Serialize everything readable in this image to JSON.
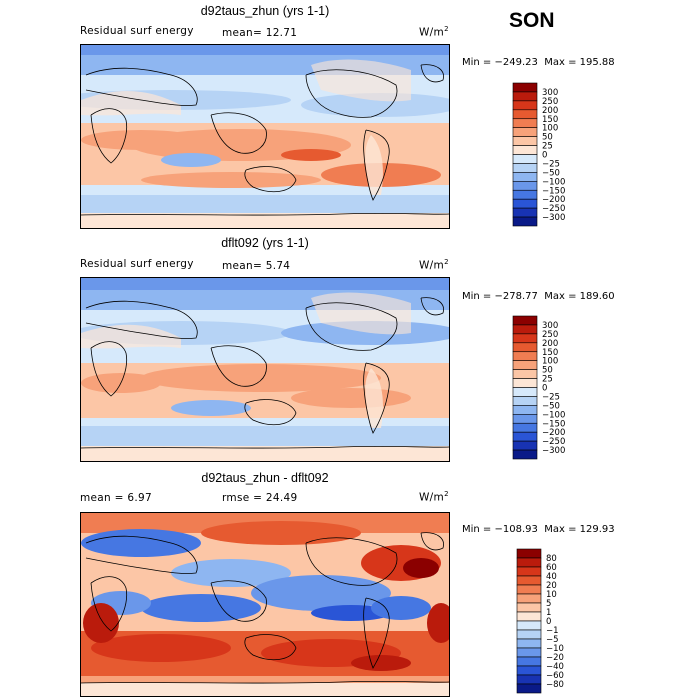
{
  "season": "SON",
  "chart_data": [
    {
      "type": "heatmap",
      "title": "d92taus_zhun (yrs 1-1)",
      "left_label": "Residual surf energy",
      "mid_label": "mean=  12.71",
      "units": "W/m",
      "units_sup": "2",
      "min_label": "Min = −249.23",
      "max_label": "Max = 195.88",
      "mean": 12.71,
      "min": -249.23,
      "max": 195.88,
      "levels": [
        "300",
        "250",
        "200",
        "150",
        "100",
        "50",
        "25",
        "0",
        "−25",
        "−50",
        "−100",
        "−150",
        "−200",
        "−250",
        "−300"
      ],
      "colors": [
        "#8b0000",
        "#ba1b0c",
        "#d7361a",
        "#e65a30",
        "#f07d52",
        "#f7a27a",
        "#fcc6a6",
        "#fde6d6",
        "#d6e9fb",
        "#b6d3f5",
        "#8eb6f1",
        "#6a97ea",
        "#4677e2",
        "#2a55d6",
        "#1833b3",
        "#0a1a88"
      ]
    },
    {
      "type": "heatmap",
      "title": "dflt092 (yrs 1-1)",
      "left_label": "Residual surf energy",
      "mid_label": "mean=  5.74",
      "units": "W/m",
      "units_sup": "2",
      "min_label": "Min = −278.77",
      "max_label": "Max = 189.60",
      "mean": 5.74,
      "min": -278.77,
      "max": 189.6,
      "levels": [
        "300",
        "250",
        "200",
        "150",
        "100",
        "50",
        "25",
        "0",
        "−25",
        "−50",
        "−100",
        "−150",
        "−200",
        "−250",
        "−300"
      ],
      "colors": [
        "#8b0000",
        "#ba1b0c",
        "#d7361a",
        "#e65a30",
        "#f07d52",
        "#f7a27a",
        "#fcc6a6",
        "#fde6d6",
        "#d6e9fb",
        "#b6d3f5",
        "#8eb6f1",
        "#6a97ea",
        "#4677e2",
        "#2a55d6",
        "#1833b3",
        "#0a1a88"
      ]
    },
    {
      "type": "heatmap",
      "title": "d92taus_zhun - dflt092",
      "left_label": "mean =   6.97",
      "mid_label": "rmse =  24.49",
      "units": "W/m",
      "units_sup": "2",
      "min_label": "Min = −108.93",
      "max_label": "Max = 129.93",
      "mean": 6.97,
      "rmse": 24.49,
      "min": -108.93,
      "max": 129.93,
      "levels": [
        "80",
        "60",
        "40",
        "20",
        "10",
        "5",
        "1",
        "0",
        "−1",
        "−5",
        "−10",
        "−20",
        "−40",
        "−60",
        "−80"
      ],
      "colors": [
        "#8b0000",
        "#ba1b0c",
        "#d7361a",
        "#e65a30",
        "#f07d52",
        "#f7a27a",
        "#fcc6a6",
        "#fde6d6",
        "#d6e9fb",
        "#b6d3f5",
        "#8eb6f1",
        "#6a97ea",
        "#4677e2",
        "#2a55d6",
        "#1833b3",
        "#0a1a88"
      ]
    }
  ]
}
